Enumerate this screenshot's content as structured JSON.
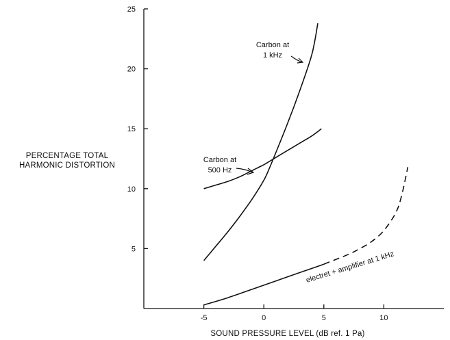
{
  "chart_data": {
    "type": "line",
    "xlabel": "SOUND PRESSURE LEVEL (dB ref. 1 Pa)",
    "ylabel_lines": [
      "PERCENTAGE TOTAL",
      "HARMONIC DISTORTION"
    ],
    "xlim": [
      -10,
      15
    ],
    "ylim": [
      0,
      25
    ],
    "x_ticks": [
      -5,
      0,
      5,
      10
    ],
    "y_ticks": [
      5,
      10,
      15,
      20,
      25
    ],
    "grid": false,
    "series": [
      {
        "label_lines": [
          "Carbon at",
          "1 kHz"
        ],
        "style": "solid",
        "x": [
          -5,
          -4,
          -3,
          -2,
          -1,
          0,
          0.5,
          1,
          2,
          3,
          4,
          4.5
        ],
        "y": [
          4.0,
          5.2,
          6.4,
          7.7,
          9.1,
          10.7,
          11.8,
          13.0,
          15.5,
          18.2,
          21.2,
          23.8
        ]
      },
      {
        "label_lines": [
          "Carbon at",
          "500 Hz"
        ],
        "style": "solid",
        "x": [
          -5,
          -4,
          -3,
          -2,
          -1,
          0,
          0.5,
          1,
          2,
          3,
          4,
          4.8
        ],
        "y": [
          10.0,
          10.3,
          10.6,
          11.0,
          11.5,
          12.0,
          12.3,
          12.6,
          13.2,
          13.8,
          14.4,
          15.0
        ]
      },
      {
        "label_lines": [
          "electret + amplifier at 1 kHz"
        ],
        "style": "solid-then-dashed",
        "dash_from_x": 5,
        "x": [
          -5,
          -3,
          -1,
          1,
          3,
          5,
          7,
          8,
          9,
          10,
          11,
          11.5,
          12
        ],
        "y": [
          0.3,
          0.9,
          1.6,
          2.3,
          3.0,
          3.7,
          4.5,
          5.0,
          5.6,
          6.5,
          8.0,
          9.5,
          11.8
        ]
      }
    ]
  }
}
